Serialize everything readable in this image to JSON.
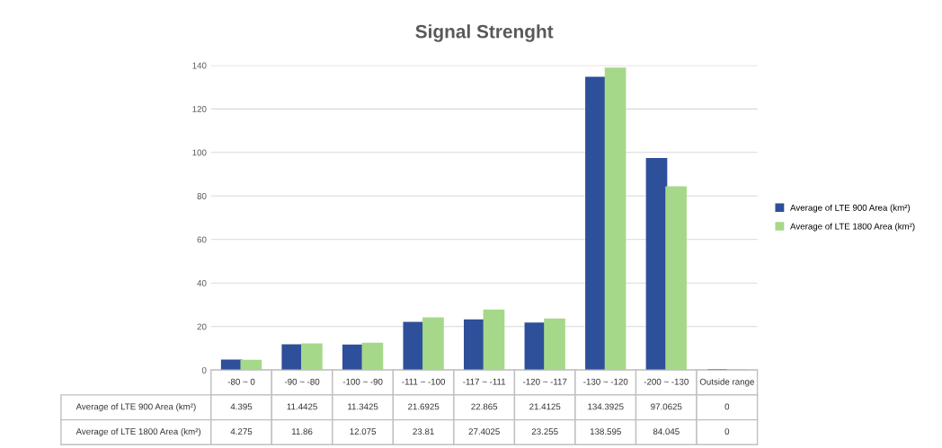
{
  "chart_data": {
    "type": "bar",
    "title": "Signal Strenght",
    "categories": [
      "-80 ~ 0",
      "-90 ~ -80",
      "-100 ~ -90",
      "-111 ~ -100",
      "-117 ~ -111",
      "-120 ~ -117",
      "-130 ~ -120",
      "-200 ~ -130",
      "Outside range"
    ],
    "series": [
      {
        "name": "Average of LTE 900 Area (km²)",
        "color": "#2e4f9a",
        "values": [
          4.395,
          11.4425,
          11.3425,
          21.6925,
          22.865,
          21.4125,
          134.3925,
          97.0625,
          0
        ]
      },
      {
        "name": "Average of LTE 1800 Area (km²)",
        "color": "#a6d88a",
        "values": [
          4.275,
          11.86,
          12.075,
          23.81,
          27.4025,
          23.255,
          138.595,
          84.045,
          0
        ]
      }
    ],
    "ylim": [
      0,
      140
    ],
    "yticks": [
      0,
      20,
      40,
      60,
      80,
      100,
      120,
      140
    ],
    "grid": "y",
    "legend": "right",
    "data_labels": true
  }
}
